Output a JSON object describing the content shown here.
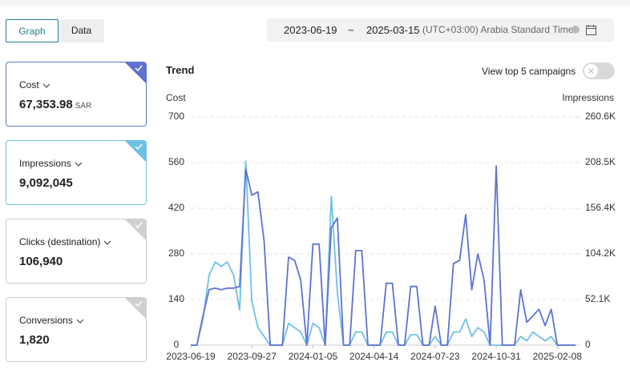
{
  "tabs": [
    "Graph",
    "Data"
  ],
  "date_range": {
    "start": "2023-06-19",
    "separator": "~",
    "end": "2025-03-15",
    "timezone": "(UTC+03:00) Arabia Standard Time"
  },
  "cards": [
    {
      "label": "Cost",
      "value": "67,353.98",
      "unit": "SAR"
    },
    {
      "label": "Impressions",
      "value": "9,092,045"
    },
    {
      "label": "Clicks (destination)",
      "value": "106,940"
    },
    {
      "label": "Conversions",
      "value": "1,820"
    }
  ],
  "toggle_label": "View top 5 campaigns",
  "chart_data": {
    "type": "line",
    "title": "Trend",
    "x": [
      "2023-06-19",
      "2023-06-29",
      "2023-07-09",
      "2023-07-19",
      "2023-07-29",
      "2023-08-08",
      "2023-08-18",
      "2023-08-28",
      "2023-09-07",
      "2023-09-17",
      "2023-09-27",
      "2023-10-07",
      "2023-10-17",
      "2023-10-27",
      "2023-11-06",
      "2023-11-16",
      "2023-11-26",
      "2023-12-06",
      "2023-12-16",
      "2023-12-26",
      "2024-01-05",
      "2024-01-15",
      "2024-01-25",
      "2024-02-04",
      "2024-02-14",
      "2024-02-24",
      "2024-03-05",
      "2024-03-15",
      "2024-03-25",
      "2024-04-04",
      "2024-04-14",
      "2024-04-24",
      "2024-05-04",
      "2024-05-14",
      "2024-05-24",
      "2024-06-03",
      "2024-06-13",
      "2024-06-23",
      "2024-07-03",
      "2024-07-13",
      "2024-07-23",
      "2024-08-02",
      "2024-08-12",
      "2024-08-22",
      "2024-09-01",
      "2024-09-11",
      "2024-09-21",
      "2024-10-01",
      "2024-10-11",
      "2024-10-21",
      "2024-10-31",
      "2024-11-10",
      "2024-11-20",
      "2024-11-30",
      "2024-12-10",
      "2024-12-20",
      "2024-12-30",
      "2025-01-09",
      "2025-01-19",
      "2025-01-29",
      "2025-02-08",
      "2025-02-18",
      "2025-02-28",
      "2025-03-10"
    ],
    "xlim": [
      "2023-06-19",
      "2025-03-15"
    ],
    "xticks": [
      "2023-06-19",
      "2023-09-27",
      "2024-01-05",
      "2024-04-14",
      "2024-07-23",
      "2024-10-31",
      "2025-02-08"
    ],
    "ylim": [
      0,
      700
    ],
    "yticks": [
      0,
      140,
      280,
      420,
      560,
      700
    ],
    "y2lim": [
      0,
      260600
    ],
    "y2ticks": [
      0,
      {
        "value": 52120,
        "label": "52.1K"
      },
      {
        "value": 104240,
        "label": "104.2K"
      },
      {
        "value": 156360,
        "label": "156.4K"
      },
      {
        "value": 208480,
        "label": "208.5K"
      },
      {
        "value": 260600,
        "label": "260.6K"
      }
    ],
    "grid": true,
    "series": [
      {
        "name": "Cost",
        "color": "#5f72d0",
        "values": [
          0,
          0,
          90,
          170,
          175,
          170,
          175,
          175,
          180,
          540,
          460,
          470,
          320,
          0,
          0,
          0,
          270,
          260,
          200,
          0,
          310,
          310,
          0,
          360,
          390,
          0,
          0,
          290,
          290,
          0,
          0,
          0,
          190,
          190,
          0,
          0,
          180,
          180,
          0,
          0,
          120,
          0,
          0,
          250,
          260,
          400,
          170,
          280,
          200,
          0,
          550,
          0,
          0,
          0,
          170,
          70,
          90,
          110,
          60,
          110,
          0,
          0,
          0,
          0
        ]
      },
      {
        "name": "Impressions",
        "color": "#6fc0e6",
        "axis": "y2",
        "values": [
          0,
          0,
          30000,
          80000,
          95000,
          90000,
          95000,
          80000,
          40000,
          210000,
          50000,
          20000,
          10000,
          0,
          0,
          0,
          25000,
          20000,
          15000,
          0,
          25000,
          20000,
          0,
          170000,
          60000,
          0,
          0,
          15000,
          15000,
          0,
          0,
          0,
          15000,
          15000,
          0,
          0,
          12000,
          12000,
          0,
          0,
          10000,
          0,
          0,
          15000,
          15000,
          30000,
          10000,
          20000,
          15000,
          0,
          0,
          0,
          0,
          0,
          10000,
          5000,
          15000,
          10000,
          5000,
          10000,
          0,
          0,
          0,
          0
        ]
      }
    ]
  }
}
